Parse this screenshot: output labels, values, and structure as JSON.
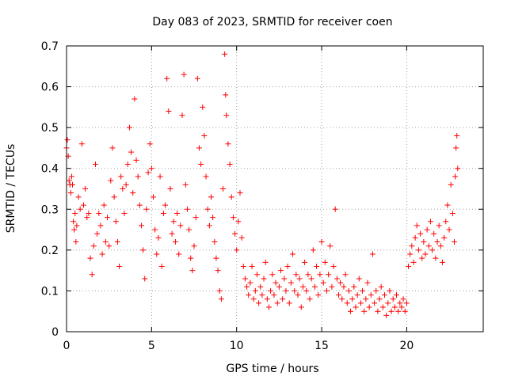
{
  "chart_data": {
    "type": "scatter",
    "title": "Day 083 of 2023, SRMTID for receiver coen",
    "xlabel": "GPS time / hours",
    "ylabel": "SRMTID / TECUs",
    "xlim": [
      0,
      24.5
    ],
    "ylim": [
      0,
      0.7
    ],
    "xticks": [
      0,
      5,
      10,
      15,
      20
    ],
    "yticks": [
      0,
      0.1,
      0.2,
      0.3,
      0.4,
      0.5,
      0.6,
      0.7
    ],
    "xtick_labels": [
      "0",
      "5",
      "10",
      "15",
      "20"
    ],
    "ytick_labels": [
      "0",
      "0.1",
      "0.2",
      "0.3",
      "0.4",
      "0.5",
      "0.6",
      "0.7"
    ],
    "grid": true,
    "marker": "+",
    "color": "#ff0000",
    "series": [
      {
        "name": "SRMTID",
        "points": [
          [
            0.0,
            0.45
          ],
          [
            0.05,
            0.47
          ],
          [
            0.1,
            0.43
          ],
          [
            0.15,
            0.37
          ],
          [
            0.2,
            0.36
          ],
          [
            0.25,
            0.34
          ],
          [
            0.3,
            0.38
          ],
          [
            0.35,
            0.36
          ],
          [
            0.4,
            0.27
          ],
          [
            0.45,
            0.25
          ],
          [
            0.5,
            0.29
          ],
          [
            0.55,
            0.22
          ],
          [
            0.6,
            0.26
          ],
          [
            0.7,
            0.33
          ],
          [
            0.8,
            0.3
          ],
          [
            0.9,
            0.46
          ],
          [
            1.0,
            0.31
          ],
          [
            1.1,
            0.35
          ],
          [
            1.2,
            0.28
          ],
          [
            1.3,
            0.29
          ],
          [
            1.4,
            0.18
          ],
          [
            1.5,
            0.14
          ],
          [
            1.6,
            0.21
          ],
          [
            1.7,
            0.41
          ],
          [
            1.8,
            0.24
          ],
          [
            1.9,
            0.29
          ],
          [
            2.0,
            0.26
          ],
          [
            2.1,
            0.19
          ],
          [
            2.2,
            0.31
          ],
          [
            2.3,
            0.22
          ],
          [
            2.4,
            0.28
          ],
          [
            2.5,
            0.21
          ],
          [
            2.6,
            0.37
          ],
          [
            2.7,
            0.45
          ],
          [
            2.8,
            0.33
          ],
          [
            2.9,
            0.27
          ],
          [
            3.0,
            0.22
          ],
          [
            3.1,
            0.16
          ],
          [
            3.2,
            0.38
          ],
          [
            3.3,
            0.35
          ],
          [
            3.4,
            0.29
          ],
          [
            3.5,
            0.36
          ],
          [
            3.6,
            0.41
          ],
          [
            3.7,
            0.5
          ],
          [
            3.8,
            0.44
          ],
          [
            3.9,
            0.34
          ],
          [
            4.0,
            0.57
          ],
          [
            4.1,
            0.42
          ],
          [
            4.2,
            0.38
          ],
          [
            4.3,
            0.31
          ],
          [
            4.4,
            0.26
          ],
          [
            4.5,
            0.2
          ],
          [
            4.6,
            0.13
          ],
          [
            4.7,
            0.3
          ],
          [
            4.8,
            0.39
          ],
          [
            4.9,
            0.46
          ],
          [
            5.0,
            0.4
          ],
          [
            5.1,
            0.33
          ],
          [
            5.2,
            0.25
          ],
          [
            5.3,
            0.19
          ],
          [
            5.4,
            0.23
          ],
          [
            5.5,
            0.38
          ],
          [
            5.6,
            0.16
          ],
          [
            5.7,
            0.29
          ],
          [
            5.8,
            0.31
          ],
          [
            5.9,
            0.62
          ],
          [
            6.0,
            0.54
          ],
          [
            6.1,
            0.35
          ],
          [
            6.2,
            0.24
          ],
          [
            6.3,
            0.27
          ],
          [
            6.4,
            0.22
          ],
          [
            6.5,
            0.29
          ],
          [
            6.6,
            0.19
          ],
          [
            6.7,
            0.26
          ],
          [
            6.8,
            0.53
          ],
          [
            6.9,
            0.63
          ],
          [
            7.0,
            0.36
          ],
          [
            7.1,
            0.3
          ],
          [
            7.2,
            0.25
          ],
          [
            7.3,
            0.18
          ],
          [
            7.4,
            0.15
          ],
          [
            7.5,
            0.21
          ],
          [
            7.6,
            0.28
          ],
          [
            7.7,
            0.62
          ],
          [
            7.8,
            0.45
          ],
          [
            7.9,
            0.41
          ],
          [
            8.0,
            0.55
          ],
          [
            8.1,
            0.48
          ],
          [
            8.2,
            0.38
          ],
          [
            8.3,
            0.3
          ],
          [
            8.4,
            0.26
          ],
          [
            8.5,
            0.33
          ],
          [
            8.6,
            0.28
          ],
          [
            8.7,
            0.22
          ],
          [
            8.8,
            0.18
          ],
          [
            8.9,
            0.15
          ],
          [
            9.0,
            0.1
          ],
          [
            9.1,
            0.08
          ],
          [
            9.2,
            0.35
          ],
          [
            9.3,
            0.68
          ],
          [
            9.35,
            0.58
          ],
          [
            9.4,
            0.53
          ],
          [
            9.5,
            0.46
          ],
          [
            9.6,
            0.41
          ],
          [
            9.7,
            0.33
          ],
          [
            9.8,
            0.28
          ],
          [
            9.9,
            0.24
          ],
          [
            10.0,
            0.2
          ],
          [
            10.1,
            0.27
          ],
          [
            10.2,
            0.34
          ],
          [
            10.3,
            0.23
          ],
          [
            10.4,
            0.16
          ],
          [
            10.5,
            0.13
          ],
          [
            10.6,
            0.11
          ],
          [
            10.7,
            0.09
          ],
          [
            10.8,
            0.12
          ],
          [
            10.9,
            0.16
          ],
          [
            11.0,
            0.08
          ],
          [
            11.1,
            0.1
          ],
          [
            11.2,
            0.14
          ],
          [
            11.3,
            0.07
          ],
          [
            11.4,
            0.11
          ],
          [
            11.5,
            0.09
          ],
          [
            11.6,
            0.13
          ],
          [
            11.7,
            0.17
          ],
          [
            11.8,
            0.08
          ],
          [
            11.9,
            0.06
          ],
          [
            12.0,
            0.1
          ],
          [
            12.1,
            0.14
          ],
          [
            12.2,
            0.09
          ],
          [
            12.3,
            0.12
          ],
          [
            12.4,
            0.07
          ],
          [
            12.5,
            0.11
          ],
          [
            12.6,
            0.15
          ],
          [
            12.7,
            0.08
          ],
          [
            12.8,
            0.13
          ],
          [
            12.9,
            0.1
          ],
          [
            13.0,
            0.16
          ],
          [
            13.1,
            0.07
          ],
          [
            13.2,
            0.12
          ],
          [
            13.3,
            0.19
          ],
          [
            13.4,
            0.1
          ],
          [
            13.5,
            0.14
          ],
          [
            13.6,
            0.09
          ],
          [
            13.7,
            0.13
          ],
          [
            13.8,
            0.06
          ],
          [
            13.9,
            0.11
          ],
          [
            14.0,
            0.17
          ],
          [
            14.1,
            0.1
          ],
          [
            14.2,
            0.14
          ],
          [
            14.3,
            0.08
          ],
          [
            14.4,
            0.13
          ],
          [
            14.5,
            0.2
          ],
          [
            14.6,
            0.11
          ],
          [
            14.7,
            0.16
          ],
          [
            14.8,
            0.09
          ],
          [
            14.9,
            0.14
          ],
          [
            15.0,
            0.22
          ],
          [
            15.1,
            0.12
          ],
          [
            15.2,
            0.17
          ],
          [
            15.3,
            0.1
          ],
          [
            15.4,
            0.14
          ],
          [
            15.5,
            0.21
          ],
          [
            15.6,
            0.11
          ],
          [
            15.7,
            0.16
          ],
          [
            15.8,
            0.3
          ],
          [
            15.9,
            0.13
          ],
          [
            16.0,
            0.09
          ],
          [
            16.1,
            0.12
          ],
          [
            16.2,
            0.08
          ],
          [
            16.3,
            0.11
          ],
          [
            16.4,
            0.14
          ],
          [
            16.5,
            0.07
          ],
          [
            16.6,
            0.1
          ],
          [
            16.7,
            0.05
          ],
          [
            16.8,
            0.08
          ],
          [
            16.9,
            0.11
          ],
          [
            17.0,
            0.06
          ],
          [
            17.1,
            0.09
          ],
          [
            17.2,
            0.13
          ],
          [
            17.3,
            0.07
          ],
          [
            17.4,
            0.1
          ],
          [
            17.5,
            0.05
          ],
          [
            17.6,
            0.08
          ],
          [
            17.7,
            0.12
          ],
          [
            17.8,
            0.06
          ],
          [
            17.9,
            0.09
          ],
          [
            18.0,
            0.19
          ],
          [
            18.1,
            0.07
          ],
          [
            18.2,
            0.1
          ],
          [
            18.3,
            0.05
          ],
          [
            18.4,
            0.08
          ],
          [
            18.5,
            0.11
          ],
          [
            18.6,
            0.06
          ],
          [
            18.7,
            0.09
          ],
          [
            18.8,
            0.04
          ],
          [
            18.9,
            0.07
          ],
          [
            19.0,
            0.1
          ],
          [
            19.1,
            0.05
          ],
          [
            19.2,
            0.08
          ],
          [
            19.3,
            0.06
          ],
          [
            19.4,
            0.09
          ],
          [
            19.5,
            0.05
          ],
          [
            19.6,
            0.07
          ],
          [
            19.7,
            0.06
          ],
          [
            19.8,
            0.08
          ],
          [
            19.9,
            0.05
          ],
          [
            20.0,
            0.07
          ],
          [
            20.1,
            0.16
          ],
          [
            20.2,
            0.19
          ],
          [
            20.3,
            0.21
          ],
          [
            20.4,
            0.17
          ],
          [
            20.5,
            0.23
          ],
          [
            20.6,
            0.26
          ],
          [
            20.7,
            0.2
          ],
          [
            20.8,
            0.24
          ],
          [
            20.9,
            0.18
          ],
          [
            21.0,
            0.22
          ],
          [
            21.1,
            0.19
          ],
          [
            21.2,
            0.25
          ],
          [
            21.3,
            0.21
          ],
          [
            21.4,
            0.27
          ],
          [
            21.5,
            0.2
          ],
          [
            21.6,
            0.24
          ],
          [
            21.7,
            0.18
          ],
          [
            21.8,
            0.22
          ],
          [
            21.9,
            0.26
          ],
          [
            22.0,
            0.21
          ],
          [
            22.1,
            0.17
          ],
          [
            22.2,
            0.23
          ],
          [
            22.3,
            0.27
          ],
          [
            22.4,
            0.31
          ],
          [
            22.5,
            0.25
          ],
          [
            22.6,
            0.36
          ],
          [
            22.7,
            0.29
          ],
          [
            22.8,
            0.22
          ],
          [
            22.85,
            0.38
          ],
          [
            22.9,
            0.45
          ],
          [
            22.95,
            0.48
          ],
          [
            23.0,
            0.4
          ]
        ]
      }
    ]
  }
}
